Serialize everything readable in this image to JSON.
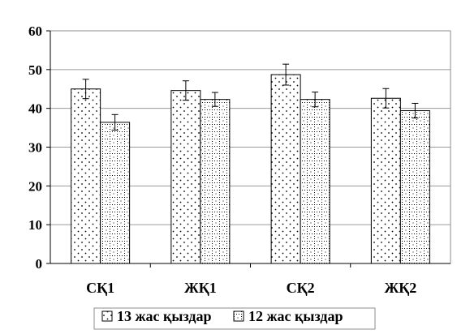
{
  "chart_data": {
    "type": "bar",
    "categories": [
      "СҚ1",
      "ЖҚ1",
      "СҚ2",
      "ЖҚ2"
    ],
    "series": [
      {
        "name": "13 жас қыздар",
        "values": [
          45.0,
          44.6,
          48.7,
          42.6
        ],
        "errors": [
          2.5,
          2.5,
          2.7,
          2.5
        ],
        "pattern": "sparse-dots"
      },
      {
        "name": "12 жас қыздар",
        "values": [
          36.4,
          42.3,
          42.3,
          39.4
        ],
        "errors": [
          2.0,
          1.8,
          1.9,
          1.9
        ],
        "pattern": "dotted-grid"
      }
    ],
    "y_ticks": [
      "0",
      "10",
      "20",
      "30",
      "40",
      "50",
      "60"
    ],
    "ylim": [
      0,
      60
    ],
    "grid": "horizontal",
    "legend": "bottom",
    "error_bars": true,
    "title": "",
    "xlabel": "",
    "ylabel": ""
  }
}
